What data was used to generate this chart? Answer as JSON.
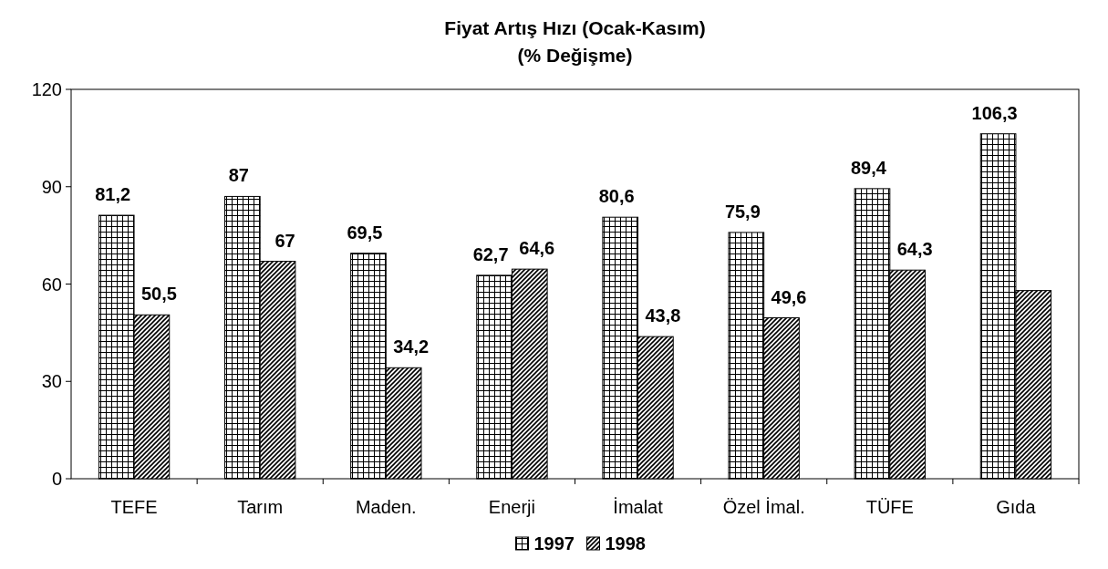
{
  "chart_data": {
    "type": "bar",
    "title": "Fiyat Artış Hızı (Ocak-Kasım)",
    "subtitle": "(% Değişme)",
    "categories": [
      "TEFE",
      "Tarım",
      "Maden.",
      "Enerji",
      "İmalat",
      "Özel İmal.",
      "TÜFE",
      "Gıda"
    ],
    "series": [
      {
        "name": "1997",
        "color": "#000000",
        "values": [
          81.2,
          87,
          69.5,
          62.7,
          80.6,
          75.9,
          89.4,
          106.3
        ],
        "value_labels": [
          "81,2",
          "87",
          "69,5",
          "62,7",
          "80,6",
          "75,9",
          "89,4",
          "106,3"
        ]
      },
      {
        "name": "1998",
        "color": "#000000",
        "values": [
          50.5,
          67,
          34.2,
          64.6,
          43.8,
          49.6,
          64.3,
          58
        ],
        "value_labels": [
          "50,5",
          "67",
          "34,2",
          "64,6",
          "43,8",
          "49,6",
          "64,3",
          null
        ]
      }
    ],
    "ylim": [
      0,
      120
    ],
    "yticks": [
      0,
      30,
      60,
      90,
      120
    ],
    "grid": false,
    "legend": "bottom"
  }
}
